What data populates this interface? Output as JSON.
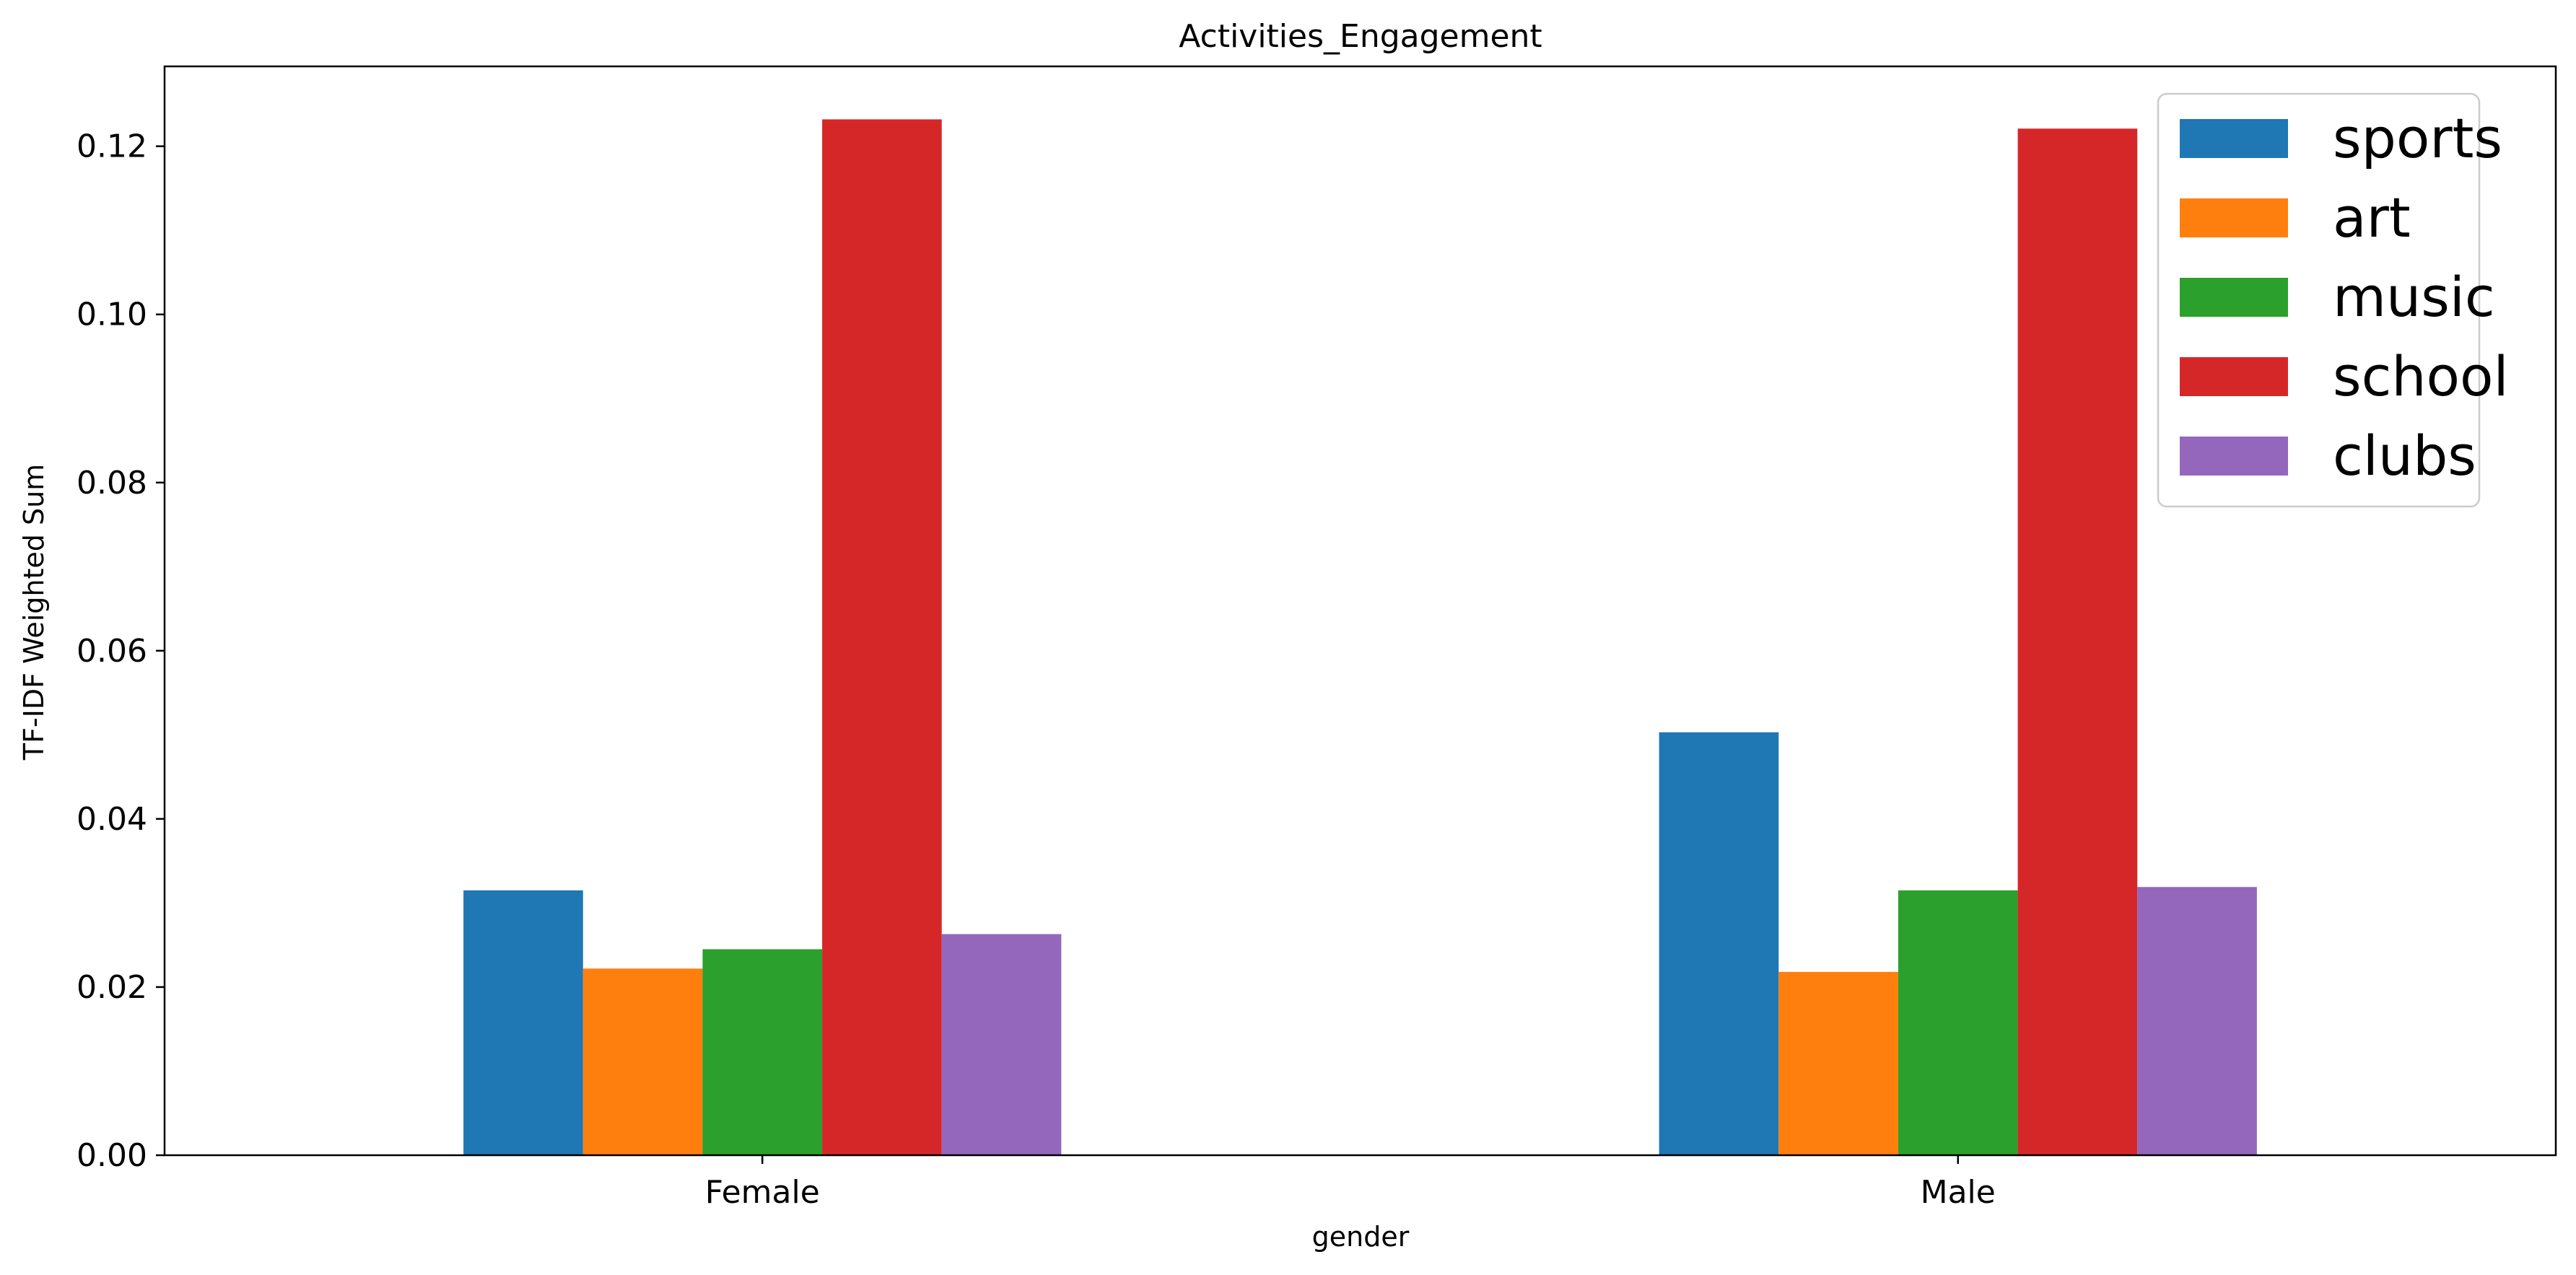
{
  "chart_data": {
    "type": "bar",
    "title": "Activities_Engagement",
    "xlabel": "gender",
    "ylabel": "TF-IDF Weighted Sum",
    "categories": [
      "Female",
      "Male"
    ],
    "series": [
      {
        "name": "sports",
        "color": "#1f77b4",
        "values": [
          0.0315,
          0.0503
        ]
      },
      {
        "name": "art",
        "color": "#ff7f0e",
        "values": [
          0.0222,
          0.0218
        ]
      },
      {
        "name": "music",
        "color": "#2ca02c",
        "values": [
          0.0245,
          0.0315
        ]
      },
      {
        "name": "school",
        "color": "#d62728",
        "values": [
          0.1232,
          0.1221
        ]
      },
      {
        "name": "clubs",
        "color": "#9467bd",
        "values": [
          0.0263,
          0.0319
        ]
      }
    ],
    "ylim": [
      0,
      0.1295
    ],
    "yticks": [
      0.0,
      0.02,
      0.04,
      0.06,
      0.08,
      0.1,
      0.12
    ],
    "ytick_labels": [
      "0.00",
      "0.02",
      "0.04",
      "0.06",
      "0.08",
      "0.10",
      "0.12"
    ],
    "grid": false,
    "legend_position": "top-right"
  }
}
